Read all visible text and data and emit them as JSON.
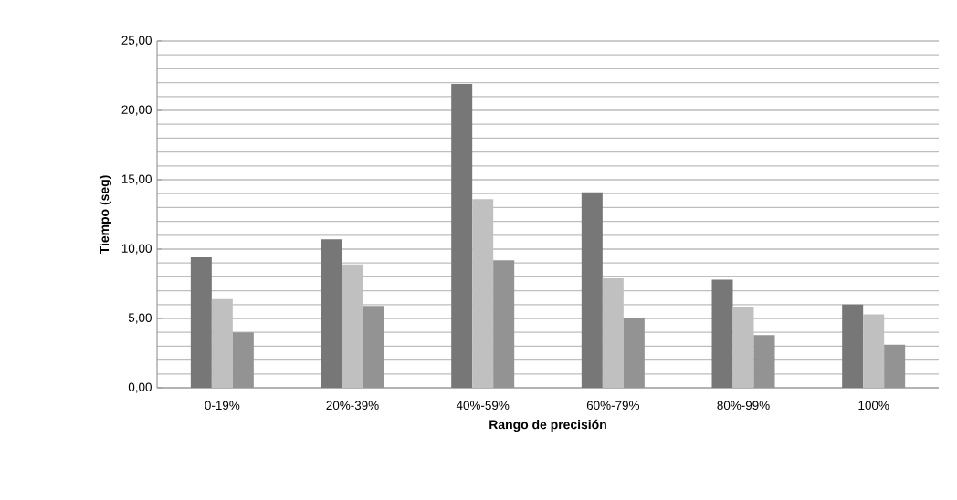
{
  "chart_data": {
    "type": "bar",
    "xlabel": "Rango de precisión",
    "ylabel": "Tiempo (seg)",
    "categories": [
      "0-19%",
      "20%-39%",
      "40%-59%",
      "60%-79%",
      "80%-99%",
      "100%"
    ],
    "series": [
      {
        "color": "#777777",
        "values": [
          9.4,
          10.7,
          21.9,
          14.1,
          7.8,
          6.0
        ]
      },
      {
        "color": "#c0c0c0",
        "values": [
          6.4,
          8.9,
          13.6,
          7.9,
          5.8,
          5.3
        ]
      },
      {
        "color": "#939393",
        "values": [
          4.0,
          5.9,
          9.2,
          5.0,
          3.8,
          3.1
        ]
      }
    ],
    "ylim": [
      0,
      25
    ],
    "yticks": [
      {
        "value": 0,
        "label": "0,00"
      },
      {
        "value": 5,
        "label": "5,00"
      },
      {
        "value": 10,
        "label": "10,00"
      },
      {
        "value": 15,
        "label": "15,00"
      },
      {
        "value": 20,
        "label": "20,00"
      },
      {
        "value": 25,
        "label": "25,00"
      }
    ],
    "grid": "y"
  }
}
